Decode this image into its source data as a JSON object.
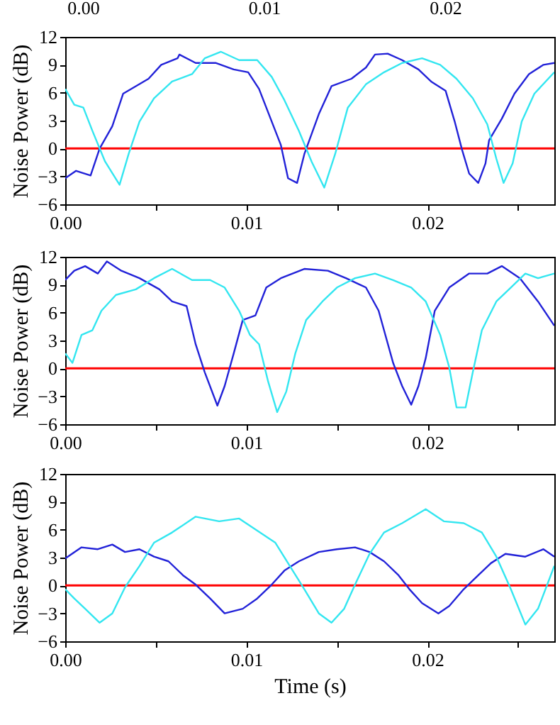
{
  "chart_data": [
    {
      "type": "other",
      "annotations": [
        "0.00",
        "0.01",
        "0.02"
      ]
    },
    {
      "type": "line",
      "ylabel": "Noise Power (dB)",
      "xlim": [
        0,
        0.027
      ],
      "ylim": [
        -6,
        12
      ],
      "xticks": [
        {
          "value": 0,
          "label": "0.00"
        },
        {
          "value": 0.005,
          "label": null
        },
        {
          "value": 0.01,
          "label": "0.01"
        },
        {
          "value": 0.015,
          "label": null
        },
        {
          "value": 0.02,
          "label": "0.02"
        },
        {
          "value": 0.025,
          "label": null
        }
      ],
      "yticks": [
        -6,
        -3,
        0,
        3,
        6,
        9,
        12
      ],
      "ref_lines": [
        {
          "axis": "y",
          "value": 0,
          "color": "#ff0000"
        }
      ],
      "series": [
        {
          "color": "#2222d8",
          "x": [
            0,
            0.0006,
            0.0014,
            0.0019,
            0.0026,
            0.0032,
            0.0039,
            0.0046,
            0.0053,
            0.0062,
            0.0063,
            0.0072,
            0.0083,
            0.0093,
            0.0101,
            0.0107,
            0.0114,
            0.0119,
            0.0123,
            0.0128,
            0.0132,
            0.014,
            0.0147,
            0.0158,
            0.0166,
            0.0171,
            0.0178,
            0.0186,
            0.0195,
            0.0202,
            0.021,
            0.0215,
            0.0219,
            0.0223,
            0.0228,
            0.0232,
            0.0234,
            0.0241,
            0.0248,
            0.0256,
            0.0264,
            0.027
          ],
          "values": [
            -3.2,
            -2.4,
            -2.9,
            0,
            2.4,
            5.9,
            6.7,
            7.5,
            9,
            9.7,
            10.1,
            9.2,
            9.2,
            8.5,
            8.2,
            6.4,
            2.9,
            0.4,
            -3.2,
            -3.7,
            -0.6,
            3.7,
            6.7,
            7.5,
            8.7,
            10.1,
            10.2,
            9.5,
            8.5,
            7.2,
            6.2,
            2.9,
            -0.1,
            -2.7,
            -3.7,
            -1.6,
            0.9,
            3.2,
            5.9,
            8,
            9,
            9.2
          ]
        },
        {
          "color": "#33e6f0",
          "x": [
            0,
            0.0005,
            0.001,
            0.0015,
            0.0022,
            0.003,
            0.0035,
            0.0041,
            0.0049,
            0.0059,
            0.007,
            0.0077,
            0.0086,
            0.0096,
            0.0106,
            0.0114,
            0.0121,
            0.0129,
            0.0136,
            0.0143,
            0.0149,
            0.0156,
            0.0166,
            0.0176,
            0.0186,
            0.0197,
            0.0207,
            0.0216,
            0.0225,
            0.0233,
            0.0238,
            0.0242,
            0.0247,
            0.0252,
            0.0259,
            0.027
          ],
          "values": [
            6.4,
            4.7,
            4.4,
            1.9,
            -1.4,
            -3.9,
            -0.6,
            2.9,
            5.4,
            7.2,
            8,
            9.7,
            10.4,
            9.5,
            9.5,
            7.7,
            5.2,
            1.9,
            -1.4,
            -4.2,
            -0.6,
            4.4,
            6.9,
            8.2,
            9.2,
            9.7,
            9,
            7.5,
            5.4,
            2.6,
            -1.1,
            -3.7,
            -1.6,
            2.9,
            5.9,
            8.2
          ]
        }
      ]
    },
    {
      "type": "line",
      "ylabel": "Noise Power (dB)",
      "xlim": [
        0,
        0.027
      ],
      "ylim": [
        -6,
        12
      ],
      "xticks": [
        {
          "value": 0,
          "label": "0.00"
        },
        {
          "value": 0.005,
          "label": null
        },
        {
          "value": 0.01,
          "label": "0.01"
        },
        {
          "value": 0.015,
          "label": null
        },
        {
          "value": 0.02,
          "label": "0.02"
        },
        {
          "value": 0.025,
          "label": null
        }
      ],
      "yticks": [
        -6,
        -3,
        0,
        3,
        6,
        9,
        12
      ],
      "ref_lines": [
        {
          "axis": "y",
          "value": 0,
          "color": "#ff0000"
        }
      ],
      "series": [
        {
          "color": "#2222d8",
          "x": [
            0,
            0.0005,
            0.0011,
            0.0018,
            0.0023,
            0.0031,
            0.0041,
            0.0052,
            0.0059,
            0.0067,
            0.0072,
            0.0077,
            0.0084,
            0.0088,
            0.0093,
            0.0098,
            0.0105,
            0.0111,
            0.0119,
            0.0132,
            0.0145,
            0.0155,
            0.0166,
            0.0173,
            0.0181,
            0.0186,
            0.0191,
            0.0195,
            0.0199,
            0.0204,
            0.0212,
            0.0223,
            0.0233,
            0.0241,
            0.0251,
            0.0261,
            0.027
          ],
          "values": [
            9.5,
            10.5,
            11,
            10.2,
            11.5,
            10.5,
            9.7,
            8.5,
            7.2,
            6.7,
            2.6,
            -0.4,
            -4,
            -1.9,
            1.6,
            5.2,
            5.7,
            8.7,
            9.7,
            10.7,
            10.5,
            9.7,
            8.7,
            6.2,
            0.6,
            -1.9,
            -3.9,
            -1.9,
            1.1,
            6.2,
            8.7,
            10.2,
            10.2,
            11,
            9.7,
            7.2,
            4.6
          ]
        },
        {
          "color": "#33e6f0",
          "x": [
            0,
            0.0004,
            0.0009,
            0.0015,
            0.002,
            0.0028,
            0.0039,
            0.0049,
            0.0059,
            0.007,
            0.008,
            0.0088,
            0.0096,
            0.0102,
            0.0107,
            0.0112,
            0.0117,
            0.0122,
            0.0127,
            0.0133,
            0.0142,
            0.015,
            0.016,
            0.0171,
            0.0181,
            0.0191,
            0.0199,
            0.0207,
            0.0212,
            0.0216,
            0.0221,
            0.0225,
            0.023,
            0.0238,
            0.0246,
            0.0254,
            0.0261,
            0.027
          ],
          "values": [
            1.6,
            0.6,
            3.6,
            4.1,
            6.2,
            7.9,
            8.5,
            9.7,
            10.7,
            9.5,
            9.5,
            8.7,
            6.2,
            3.6,
            2.6,
            -1.4,
            -4.7,
            -2.5,
            1.6,
            5.2,
            7.2,
            8.7,
            9.7,
            10.2,
            9.5,
            8.7,
            7.2,
            3.6,
            0.1,
            -4.2,
            -4.2,
            -0.4,
            4.1,
            7.2,
            8.7,
            10.2,
            9.7,
            10.2
          ]
        }
      ]
    },
    {
      "type": "line",
      "xlabel": "Time (s)",
      "ylabel": "Noise Power (dB)",
      "xlim": [
        0,
        0.027
      ],
      "ylim": [
        -6,
        12
      ],
      "xticks": [
        {
          "value": 0,
          "label": "0.00"
        },
        {
          "value": 0.005,
          "label": null
        },
        {
          "value": 0.01,
          "label": "0.01"
        },
        {
          "value": 0.015,
          "label": null
        },
        {
          "value": 0.02,
          "label": "0.02"
        },
        {
          "value": 0.025,
          "label": null
        }
      ],
      "yticks": [
        -6,
        -3,
        0,
        3,
        6,
        9,
        12
      ],
      "ref_lines": [
        {
          "axis": "y",
          "value": 0,
          "color": "#ff0000"
        }
      ],
      "series": [
        {
          "color": "#2222d8",
          "x": [
            0,
            0.0009,
            0.0018,
            0.0026,
            0.0033,
            0.0041,
            0.0049,
            0.0057,
            0.0065,
            0.0072,
            0.008,
            0.0088,
            0.0098,
            0.0106,
            0.0114,
            0.0121,
            0.0129,
            0.014,
            0.015,
            0.016,
            0.0168,
            0.0176,
            0.0184,
            0.019,
            0.0197,
            0.0206,
            0.0212,
            0.022,
            0.0228,
            0.0235,
            0.0243,
            0.0254,
            0.0264,
            0.027
          ],
          "values": [
            2.9,
            4.1,
            3.9,
            4.4,
            3.6,
            3.9,
            3.1,
            2.6,
            1.1,
            0.1,
            -1.4,
            -3,
            -2.5,
            -1.4,
            0.1,
            1.6,
            2.6,
            3.6,
            3.9,
            4.1,
            3.6,
            2.6,
            1.1,
            -0.4,
            -1.9,
            -3,
            -2.2,
            -0.4,
            1.1,
            2.4,
            3.4,
            3.1,
            3.9,
            3.1
          ]
        },
        {
          "color": "#33e6f0",
          "x": [
            0,
            0.0005,
            0.0011,
            0.0019,
            0.0026,
            0.0033,
            0.0041,
            0.0049,
            0.0059,
            0.0072,
            0.0085,
            0.0096,
            0.0106,
            0.0116,
            0.0124,
            0.0132,
            0.014,
            0.0147,
            0.0154,
            0.016,
            0.0168,
            0.0176,
            0.0186,
            0.0199,
            0.0209,
            0.022,
            0.023,
            0.0238,
            0.0246,
            0.0254,
            0.0261,
            0.027
          ],
          "values": [
            -0.4,
            -1.4,
            -2.5,
            -4,
            -3,
            -0.2,
            2.1,
            4.6,
            5.7,
            7.4,
            6.9,
            7.2,
            5.9,
            4.6,
            2.1,
            -0.4,
            -3,
            -4,
            -2.5,
            0.1,
            3.4,
            5.7,
            6.7,
            8.2,
            6.9,
            6.7,
            5.7,
            3.1,
            -0.4,
            -4.2,
            -2.5,
            2.1
          ]
        }
      ]
    }
  ]
}
